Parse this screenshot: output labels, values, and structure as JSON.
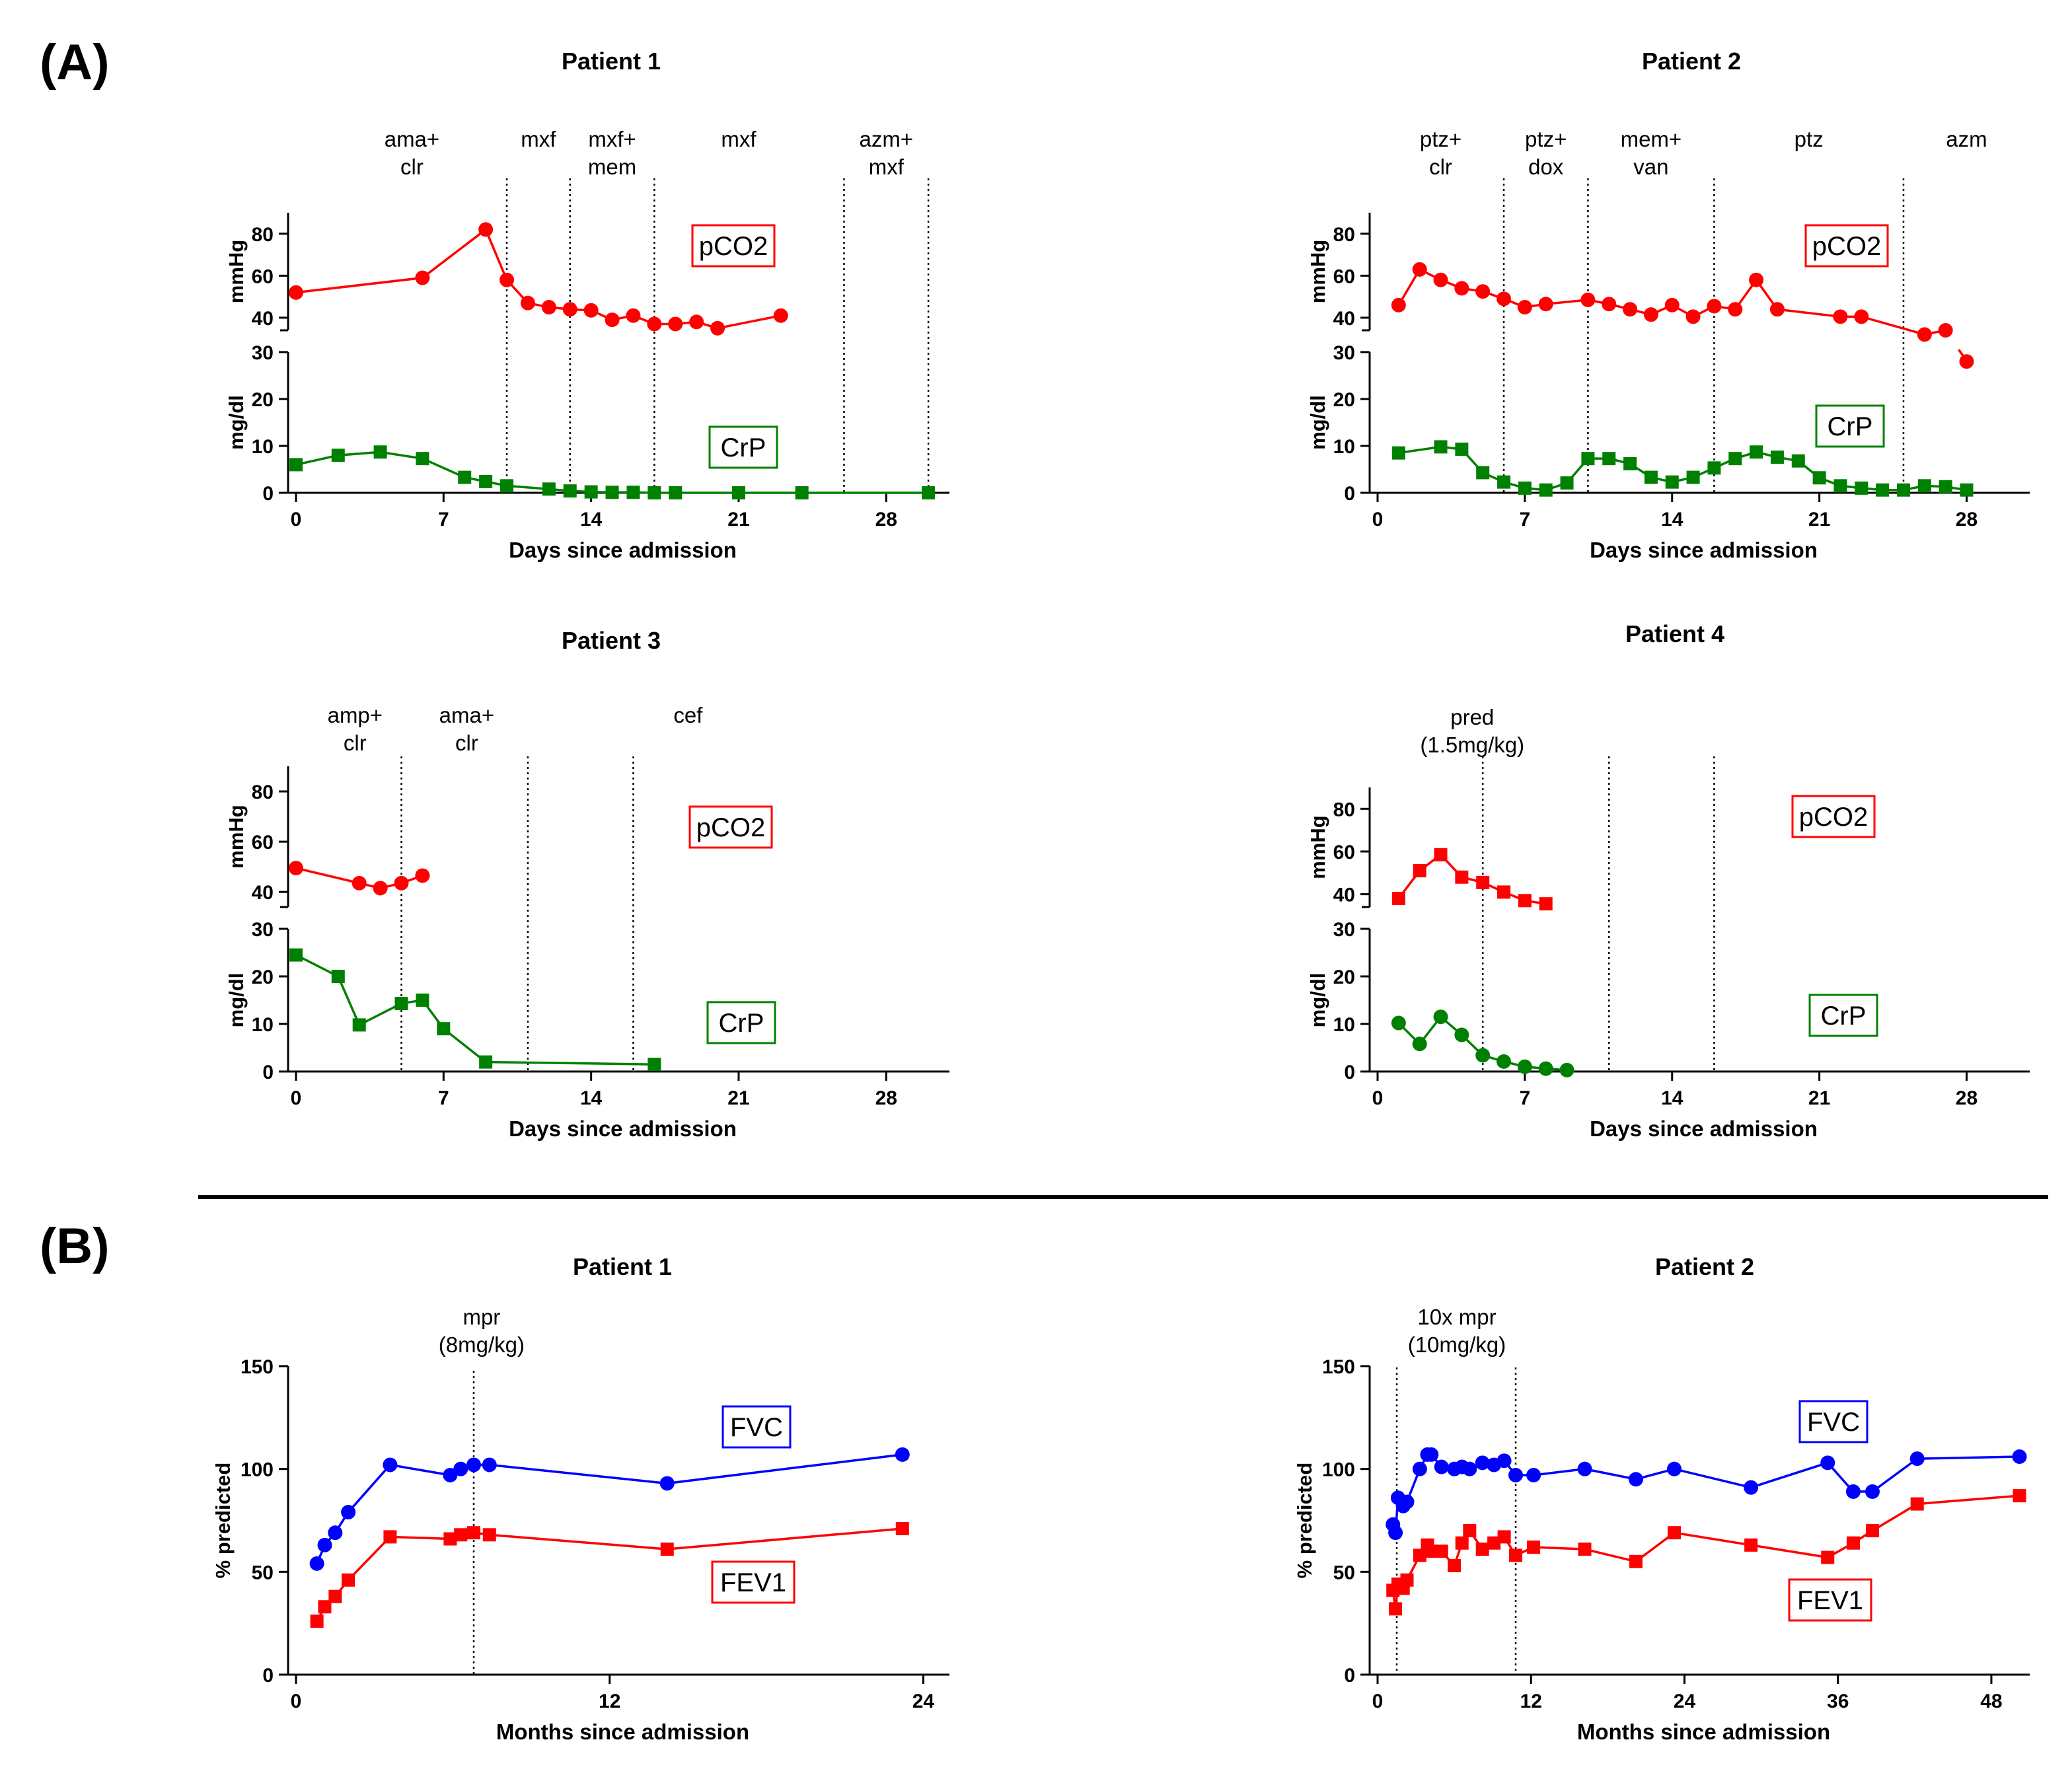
{
  "panel_labels": [
    "(A)",
    "(B)"
  ],
  "chart_data": [
    {
      "id": "A-patient-1",
      "type": "line",
      "title": "Patient 1",
      "xlabel": "Days since admission",
      "xlim": [
        0,
        31
      ],
      "xticks": [
        "0",
        "7",
        "14",
        "21",
        "28"
      ],
      "xtick_values": [
        0,
        7,
        14,
        21,
        28
      ],
      "top": {
        "ylabel": "mmHg",
        "ylim": [
          34,
          90
        ],
        "ytick_values": [
          40,
          60,
          80
        ],
        "yticks": [
          "40",
          "60",
          "80"
        ]
      },
      "bottom": {
        "ylabel": "mg/dl",
        "ylim": [
          0,
          30
        ],
        "ytick_values": [
          0,
          10,
          20,
          30
        ],
        "yticks": [
          "0",
          "10",
          "20",
          "30"
        ]
      },
      "series": [
        {
          "name": "pCO2",
          "legend": "pCO2",
          "panel": "top",
          "color": "#ff0000",
          "marker": "circle",
          "x": [
            0,
            6,
            9,
            10,
            11,
            12,
            13,
            14,
            15,
            16,
            17,
            18,
            19,
            20,
            23
          ],
          "y": [
            52,
            59,
            82,
            58,
            47,
            45,
            44,
            43.5,
            39,
            41,
            37,
            37,
            38,
            35,
            41
          ]
        },
        {
          "name": "CrP",
          "legend": "CrP",
          "panel": "bottom",
          "color": "#008000",
          "marker": "square",
          "x": [
            0,
            2,
            4,
            6,
            8,
            9,
            10,
            12,
            13,
            14,
            15,
            16,
            17,
            18,
            21,
            24,
            30
          ],
          "y": [
            6,
            8,
            8.7,
            7.3,
            3.3,
            2.4,
            1.5,
            0.8,
            0.4,
            0.2,
            0.1,
            0.1,
            0,
            0,
            0,
            0,
            0
          ]
        }
      ],
      "treatment_lines": [
        10,
        13,
        17,
        26,
        30
      ],
      "treatments": [
        {
          "text": [
            "ama+",
            "clr"
          ],
          "x": 5.5
        },
        {
          "text": [
            "mxf"
          ],
          "x": 11.5
        },
        {
          "text": [
            "mxf+",
            "mem"
          ],
          "x": 15
        },
        {
          "text": [
            "mxf"
          ],
          "x": 21
        },
        {
          "text": [
            "azm+",
            "mxf"
          ],
          "x": 28
        }
      ]
    },
    {
      "id": "A-patient-2",
      "type": "line",
      "title": "Patient 2",
      "xlabel": "Days since admission",
      "xlim": [
        0,
        31
      ],
      "xticks": [
        "0",
        "7",
        "14",
        "21",
        "28"
      ],
      "xtick_values": [
        0,
        7,
        14,
        21,
        28
      ],
      "top": {
        "ylabel": "mmHg",
        "ylim": [
          34,
          90
        ],
        "ytick_values": [
          40,
          60,
          80
        ],
        "yticks": [
          "40",
          "60",
          "80"
        ]
      },
      "bottom": {
        "ylabel": "mg/dl",
        "ylim": [
          0,
          30
        ],
        "ytick_values": [
          0,
          10,
          20,
          30
        ],
        "yticks": [
          "0",
          "10",
          "20",
          "30"
        ]
      },
      "series": [
        {
          "name": "pCO2",
          "legend": "pCO2",
          "panel": "top",
          "color": "#ff0000",
          "marker": "circle",
          "x": [
            1,
            2,
            3,
            4,
            5,
            6,
            7,
            8,
            10,
            11,
            12,
            13,
            14,
            15,
            16,
            17,
            18,
            19,
            22,
            23,
            26,
            27
          ],
          "y": [
            46,
            63,
            58,
            54,
            52.5,
            49,
            45,
            46.5,
            48.5,
            46.5,
            44,
            41.5,
            46,
            40.5,
            45.5,
            44,
            58,
            44,
            40.5,
            40.5,
            32,
            34
          ]
        },
        {
          "name": "CrP",
          "legend": "CrP",
          "panel": "bottom",
          "color": "#008000",
          "marker": "square",
          "x": [
            1,
            3,
            4,
            5,
            6,
            7,
            8,
            9,
            10,
            11,
            12,
            13,
            14,
            15,
            16,
            17,
            18,
            19,
            20,
            21,
            22,
            23,
            24,
            25,
            26,
            27,
            28
          ],
          "y": [
            8.5,
            9.8,
            9.3,
            4.3,
            2.3,
            1,
            0.6,
            2.1,
            7.3,
            7.3,
            6.2,
            3.3,
            2.3,
            3.3,
            5.3,
            7.3,
            8.7,
            7.6,
            6.8,
            3.2,
            1.5,
            1,
            0.6,
            0.6,
            1.5,
            1.3,
            0.6
          ]
        }
      ],
      "extra_points": [
        {
          "x": 28,
          "y": 28,
          "color": "#ff0000",
          "marker": "circle",
          "panel": "bottom"
        }
      ],
      "treatment_lines": [
        6,
        10,
        16,
        25
      ],
      "treatments": [
        {
          "text": [
            "ptz+",
            "clr"
          ],
          "x": 3
        },
        {
          "text": [
            "ptz+",
            "dox"
          ],
          "x": 8
        },
        {
          "text": [
            "mem+",
            "van"
          ],
          "x": 13
        },
        {
          "text": [
            "ptz"
          ],
          "x": 20.5
        },
        {
          "text": [
            "azm"
          ],
          "x": 28
        }
      ]
    },
    {
      "id": "A-patient-3",
      "type": "line",
      "title": "Patient 3",
      "xlabel": "Days since admission",
      "xlim": [
        0,
        31
      ],
      "xticks": [
        "0",
        "7",
        "14",
        "21",
        "28"
      ],
      "xtick_values": [
        0,
        7,
        14,
        21,
        28
      ],
      "top": {
        "ylabel": "mmHg",
        "ylim": [
          34,
          90
        ],
        "ytick_values": [
          40,
          60,
          80
        ],
        "yticks": [
          "40",
          "60",
          "80"
        ]
      },
      "bottom": {
        "ylabel": "mg/dl",
        "ylim": [
          0,
          30
        ],
        "ytick_values": [
          0,
          10,
          20,
          30
        ],
        "yticks": [
          "0",
          "10",
          "20",
          "30"
        ]
      },
      "series": [
        {
          "name": "pCO2",
          "legend": "pCO2",
          "panel": "top",
          "color": "#ff0000",
          "marker": "circle",
          "x": [
            0,
            3,
            4,
            5,
            6
          ],
          "y": [
            49.5,
            43.5,
            41.5,
            43.5,
            46.5
          ]
        },
        {
          "name": "CrP",
          "legend": "CrP",
          "panel": "bottom",
          "color": "#008000",
          "marker": "square",
          "x": [
            0,
            2,
            3,
            5,
            6,
            7,
            9,
            17
          ],
          "y": [
            24.5,
            20,
            9.8,
            14.3,
            15,
            9,
            2,
            1.5
          ]
        }
      ],
      "treatment_lines": [
        5,
        11,
        16
      ],
      "treatments": [
        {
          "text": [
            "amp+",
            "clr"
          ],
          "x": 2.8
        },
        {
          "text": [
            "ama+",
            "clr"
          ],
          "x": 8.1
        },
        {
          "text": [
            "cef"
          ],
          "x": 18.6
        }
      ]
    },
    {
      "id": "A-patient-4",
      "type": "line",
      "title": "Patient 4",
      "xlabel": "Days since admission",
      "xlim": [
        0,
        31
      ],
      "xticks": [
        "0",
        "7",
        "14",
        "21",
        "28"
      ],
      "xtick_values": [
        0,
        7,
        14,
        21,
        28
      ],
      "top": {
        "ylabel": "mmHg",
        "ylim": [
          34,
          90
        ],
        "ytick_values": [
          40,
          60,
          80
        ],
        "yticks": [
          "40",
          "60",
          "80"
        ]
      },
      "bottom": {
        "ylabel": "mg/dl",
        "ylim": [
          0,
          30
        ],
        "ytick_values": [
          0,
          10,
          20,
          30
        ],
        "yticks": [
          "0",
          "10",
          "20",
          "30"
        ]
      },
      "series": [
        {
          "name": "pCO2",
          "legend": "pCO2",
          "panel": "top",
          "color": "#ff0000",
          "marker": "square",
          "x": [
            1,
            2,
            3,
            4,
            5,
            6,
            7,
            8
          ],
          "y": [
            38,
            51,
            58.5,
            48,
            45.5,
            41,
            37,
            35.5
          ]
        },
        {
          "name": "CrP",
          "legend": "CrP",
          "panel": "bottom",
          "color": "#008000",
          "marker": "circle",
          "x": [
            1,
            2,
            3,
            4,
            5,
            6,
            7,
            8,
            9
          ],
          "y": [
            10.2,
            5.8,
            11.5,
            7.7,
            3.4,
            2.1,
            1,
            0.6,
            0.3
          ]
        }
      ],
      "treatment_lines": [
        5,
        11,
        16
      ],
      "treatments": [
        {
          "text": [
            "pred",
            "(1.5mg/kg)"
          ],
          "x": 4.5
        }
      ]
    },
    {
      "id": "B-patient-1",
      "type": "line",
      "title": "Patient 1",
      "xlabel": "Months since admission",
      "ylabel": "% predicted",
      "xlim": [
        0,
        25
      ],
      "xticks": [
        "0",
        "12",
        "24"
      ],
      "xtick_values": [
        0,
        12,
        24
      ],
      "ylim": [
        0,
        150
      ],
      "yticks": [
        "0",
        "50",
        "100",
        "150"
      ],
      "ytick_values": [
        0,
        50,
        100,
        150
      ],
      "series": [
        {
          "name": "FVC",
          "legend": "FVC",
          "color": "#0000ff",
          "marker": "circle",
          "box_color": "#0000ff",
          "x": [
            0.8,
            1.1,
            1.5,
            2,
            3.6,
            5.9,
            6.3,
            6.8,
            7.4,
            14.2,
            23.2
          ],
          "y": [
            54,
            63,
            69,
            79,
            102,
            97,
            100,
            102,
            102,
            93,
            107
          ]
        },
        {
          "name": "FEV1",
          "legend": "FEV1",
          "color": "#ff0000",
          "marker": "square",
          "box_color": "#ff0000",
          "x": [
            0.8,
            1.1,
            1.5,
            2,
            3.6,
            5.9,
            6.3,
            6.8,
            7.4,
            14.2,
            23.2
          ],
          "y": [
            26,
            33,
            38,
            46,
            67,
            66,
            68,
            69,
            68,
            61,
            71
          ]
        }
      ],
      "treatment_lines": [
        6.8
      ],
      "treatments": [
        {
          "text": [
            "mpr",
            "(8mg/kg)"
          ],
          "x": 7.1
        }
      ]
    },
    {
      "id": "B-patient-2",
      "type": "line",
      "title": "Patient 2",
      "xlabel": "Months since admission",
      "ylabel": "% predicted",
      "xlim": [
        0,
        51
      ],
      "xticks": [
        "0",
        "12",
        "24",
        "36",
        "48"
      ],
      "xtick_values": [
        0,
        12,
        24,
        36,
        48
      ],
      "ylim": [
        0,
        150
      ],
      "yticks": [
        "0",
        "50",
        "100",
        "150"
      ],
      "ytick_values": [
        0,
        50,
        100,
        150
      ],
      "series": [
        {
          "name": "FVC",
          "legend": "FVC",
          "color": "#0000ff",
          "marker": "circle",
          "box_color": "#0000ff",
          "x": [
            1.2,
            1.4,
            1.6,
            2,
            2.3,
            3.3,
            3.9,
            4.2,
            5,
            6,
            6.6,
            7.2,
            8.2,
            9.1,
            9.9,
            10.8,
            12.2,
            16.2,
            20.2,
            23.2,
            29.2,
            35.2,
            37.2,
            38.7,
            42.2,
            50.2
          ],
          "y": [
            73,
            69,
            86,
            82,
            84,
            100,
            107,
            107,
            101,
            100,
            101,
            100,
            103,
            102,
            104,
            97,
            97,
            100,
            95,
            100,
            91,
            103,
            89,
            89,
            105,
            106
          ]
        },
        {
          "name": "FEV1",
          "legend": "FEV1",
          "color": "#ff0000",
          "marker": "square",
          "box_color": "#ff0000",
          "x": [
            1.2,
            1.4,
            1.6,
            2,
            2.3,
            3.3,
            3.9,
            4.2,
            5,
            6,
            6.6,
            7.2,
            8.2,
            9.1,
            9.9,
            10.8,
            12.2,
            16.2,
            20.2,
            23.2,
            29.2,
            35.2,
            37.2,
            38.7,
            42.2,
            50.2
          ],
          "y": [
            41,
            32,
            44,
            42,
            46,
            58,
            63,
            60,
            60,
            53,
            64,
            70,
            61,
            64,
            67,
            58,
            62,
            61,
            55,
            69,
            63,
            57,
            64,
            70,
            83,
            87
          ]
        }
      ],
      "treatment_lines": [
        1.5,
        10.8
      ],
      "treatments": [
        {
          "text": [
            "10x mpr",
            "(10mg/kg)"
          ],
          "x": 6.2
        }
      ]
    }
  ]
}
